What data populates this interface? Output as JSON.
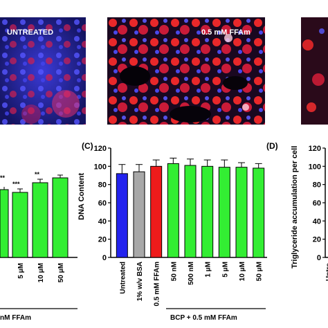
{
  "micrographs": [
    {
      "label": "UNTREATED"
    },
    {
      "label": "0.5 mM FFAm"
    },
    {
      "label": ""
    }
  ],
  "panels": {
    "C": "(C)",
    "D": "(D)"
  },
  "left_fragment": {
    "significance": [
      "**",
      "***",
      "**"
    ],
    "tick_labels": [
      "5 μM",
      "10 μM",
      "50 μM"
    ],
    "group_label": "nM FFAm"
  },
  "right_fragment": {
    "ylabel": "Triglyceride accumulation per cell",
    "ticks": [
      "120",
      "100",
      "80",
      "60",
      "40",
      "20",
      "0"
    ],
    "tick_labels": [
      "Untre",
      "1"
    ]
  },
  "chart_data": {
    "type": "bar",
    "ylabel": "DNA Content",
    "ylim": [
      0,
      120
    ],
    "yticks": [
      0,
      20,
      40,
      60,
      80,
      100,
      120
    ],
    "categories": [
      "Untreated",
      "1% w/v BSA",
      "0.5 mM FFAm",
      "50 nM",
      "500 nM",
      "1 μM",
      "5 μM",
      "10 μM",
      "50 μM"
    ],
    "values": [
      92,
      94,
      100,
      103,
      101,
      100,
      99,
      99,
      98
    ],
    "errors": [
      10,
      8,
      7,
      6,
      7,
      7,
      8,
      5,
      5
    ],
    "colors": [
      "#2323ee",
      "#a8a8a8",
      "#ee1b1b",
      "#33ee33",
      "#33ee33",
      "#33ee33",
      "#33ee33",
      "#33ee33",
      "#33ee33"
    ],
    "group_label": "BCP + 0.5 mM FFAm",
    "grid": false
  }
}
